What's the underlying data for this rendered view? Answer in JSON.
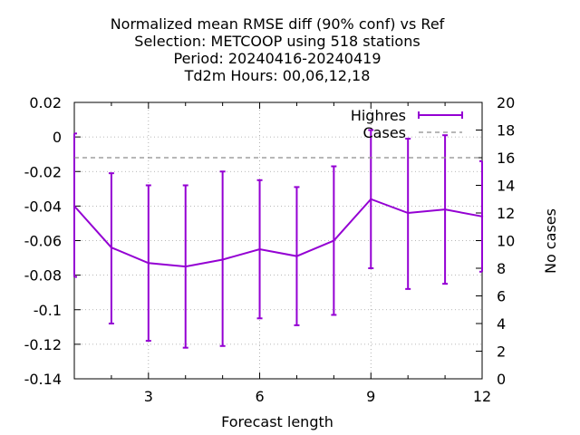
{
  "chart_data": {
    "type": "line",
    "title_lines": [
      "Normalized mean RMSE diff (90% conf) vs Ref",
      "Selection: METCOOP using   518 stations",
      "Period: 20240416-20240419",
      "Td2m   Hours:  00,06,12,18"
    ],
    "xlabel": "Forecast length",
    "ylabel": "",
    "y2label": "No cases",
    "xlim": [
      1,
      12
    ],
    "ylim": [
      -0.14,
      0.02
    ],
    "y2lim": [
      0,
      20
    ],
    "x_ticks": [
      3,
      6,
      9,
      12
    ],
    "x_tick_labels": [
      "3",
      "6",
      "9",
      "12"
    ],
    "y_ticks": [
      0.02,
      0,
      -0.02,
      -0.04,
      -0.06,
      -0.08,
      -0.1,
      -0.12,
      -0.14
    ],
    "y_tick_labels": [
      "0.02",
      "0",
      "-0.02",
      "-0.04",
      "-0.06",
      "-0.08",
      "-0.1",
      "-0.12",
      "-0.14"
    ],
    "y2_ticks": [
      20,
      18,
      16,
      14,
      12,
      10,
      8,
      6,
      4,
      2,
      0
    ],
    "y2_tick_labels": [
      "20",
      "18",
      "16",
      "14",
      "12",
      "10",
      "8",
      "6",
      "4",
      "2",
      "0"
    ],
    "grid": true,
    "legend_position": "top-right",
    "series": [
      {
        "name": "Highres",
        "axis": "left",
        "color": "#9400d3",
        "style": "line-errorbars",
        "x": [
          1,
          2,
          3,
          4,
          5,
          6,
          7,
          8,
          9,
          10,
          11,
          12
        ],
        "y": [
          -0.04,
          -0.064,
          -0.073,
          -0.075,
          -0.071,
          -0.065,
          -0.069,
          -0.06,
          -0.036,
          -0.044,
          -0.042,
          -0.046
        ],
        "y_low": [
          -0.081,
          -0.108,
          -0.118,
          -0.122,
          -0.121,
          -0.105,
          -0.109,
          -0.103,
          -0.076,
          -0.088,
          -0.085,
          -0.078
        ],
        "y_high": [
          0.002,
          -0.021,
          -0.028,
          -0.028,
          -0.02,
          -0.025,
          -0.029,
          -0.017,
          0.004,
          -0.001,
          0.001,
          -0.014
        ]
      },
      {
        "name": "Cases",
        "axis": "right",
        "color": "#8c8c8c",
        "style": "dashed",
        "x": [
          1,
          2,
          3,
          4,
          5,
          6,
          7,
          8,
          9,
          10,
          11,
          12
        ],
        "y": [
          16,
          16,
          16,
          16,
          16,
          16,
          16,
          16,
          16,
          16,
          16,
          16
        ]
      }
    ]
  }
}
